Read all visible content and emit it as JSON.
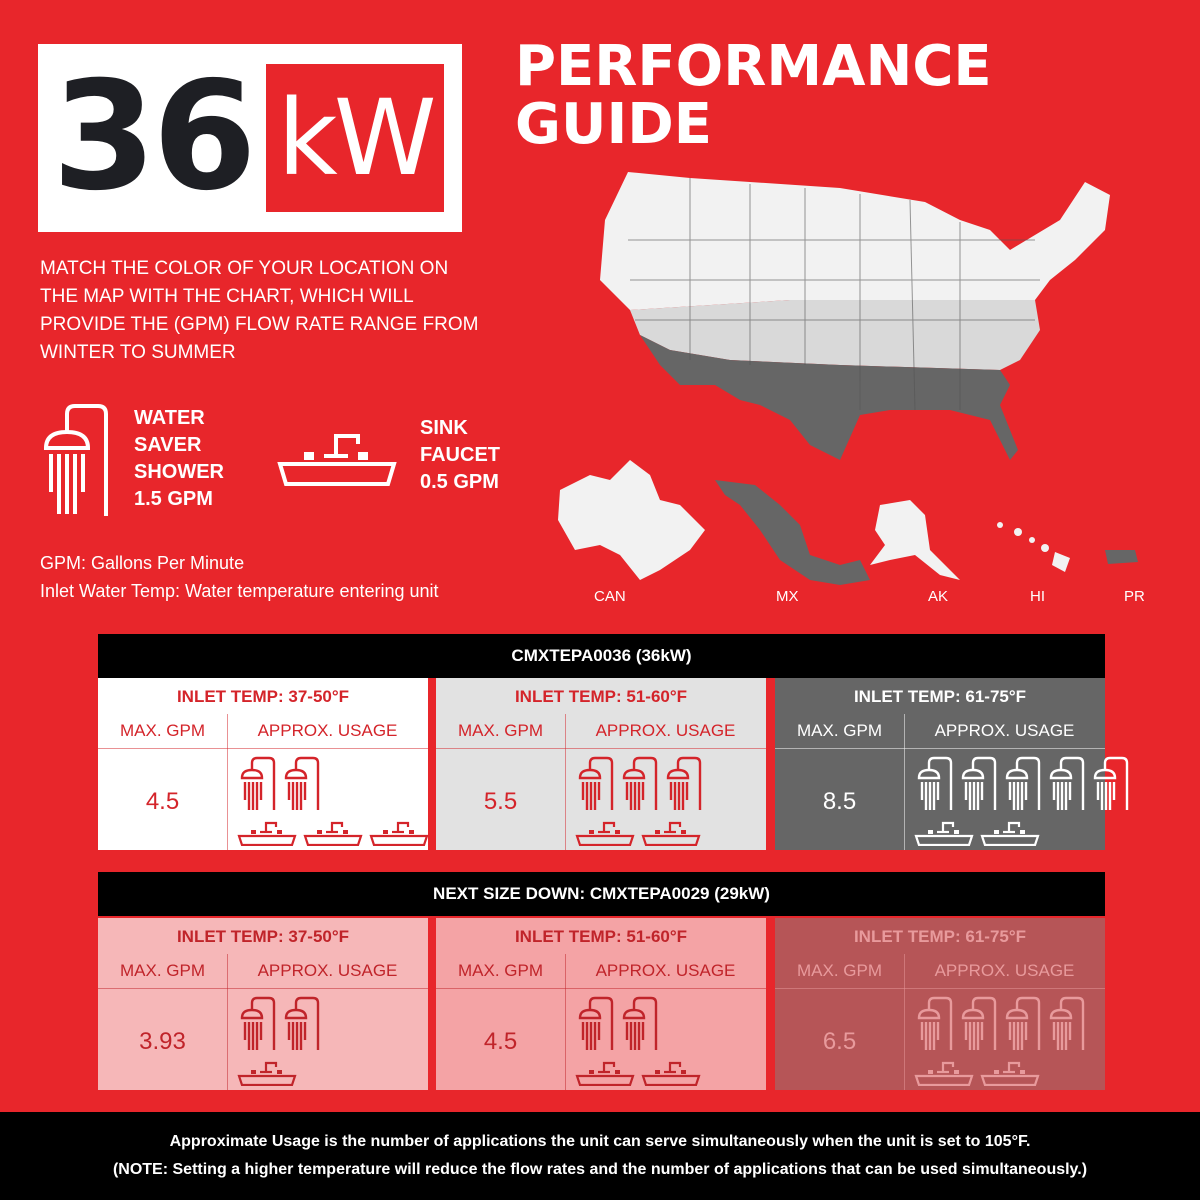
{
  "title": {
    "number": "36",
    "unit": "kW",
    "line1": "PERFORMANCE",
    "line2": "GUIDE"
  },
  "intro": "MATCH THE COLOR OF YOUR LOCATION ON THE MAP WITH THE CHART, WHICH WILL PROVIDE THE  (GPM) FLOW RATE RANGE FROM WINTER TO SUMMER",
  "legend": {
    "shower": [
      "WATER",
      "SAVER",
      "SHOWER",
      "1.5 GPM"
    ],
    "sink": [
      "SINK",
      "FAUCET",
      "0.5 GPM"
    ]
  },
  "definitions": [
    "GPM: Gallons Per Minute",
    "Inlet Water Temp: Water temperature entering unit"
  ],
  "map_labels": [
    "CAN",
    "MX",
    "AK",
    "HI",
    "PR"
  ],
  "colors": {
    "background": "#e8262b",
    "light_zone": "#d9d9d9",
    "lighter_zone": "#f2f2f2",
    "dark_zone": "#666666",
    "black": "#000000"
  },
  "tables": [
    {
      "header": "CMXTEPA0036 (36kW)",
      "panels": [
        {
          "inlet": "INLET TEMP: 37-50°F",
          "col1": "MAX. GPM",
          "col2": "APPROX. USAGE",
          "gpm": "4.5",
          "showers": 2,
          "sinks": 3
        },
        {
          "inlet": "INLET TEMP: 51-60°F",
          "col1": "MAX. GPM",
          "col2": "APPROX. USAGE",
          "gpm": "5.5",
          "showers": 3,
          "sinks": 2
        },
        {
          "inlet": "INLET TEMP: 61-75°F",
          "col1": "MAX. GPM",
          "col2": "APPROX. USAGE",
          "gpm": "8.5",
          "showers": 5,
          "sinks": 2
        }
      ]
    },
    {
      "header": "NEXT SIZE DOWN: CMXTEPA0029 (29kW)",
      "panels": [
        {
          "inlet": "INLET TEMP: 37-50°F",
          "col1": "MAX. GPM",
          "col2": "APPROX. USAGE",
          "gpm": "3.93",
          "showers": 2,
          "sinks": 1
        },
        {
          "inlet": "INLET TEMP: 51-60°F",
          "col1": "MAX. GPM",
          "col2": "APPROX. USAGE",
          "gpm": "4.5",
          "showers": 2,
          "sinks": 2
        },
        {
          "inlet": "INLET TEMP: 61-75°F",
          "col1": "MAX. GPM",
          "col2": "APPROX. USAGE",
          "gpm": "6.5",
          "showers": 4,
          "sinks": 2
        }
      ]
    }
  ],
  "footer": [
    "Approximate Usage is the number of applications the unit can serve simultaneously when the unit is set to 105°F.",
    "(NOTE:  Setting a higher temperature will reduce the flow rates and the number of applications that can be used simultaneously.)"
  ]
}
